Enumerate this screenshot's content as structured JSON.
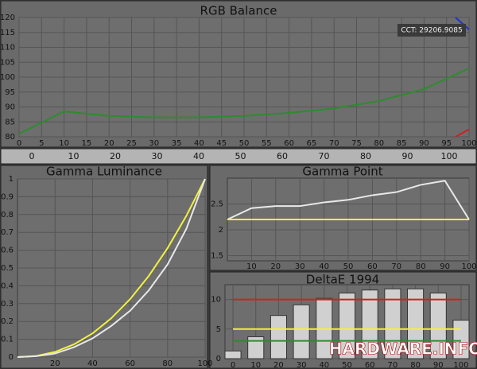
{
  "chart_data": [
    {
      "type": "line",
      "title": "RGB Balance",
      "annotation": "CCT: 29206.9085",
      "xlim": [
        0,
        100
      ],
      "xticks": [
        0,
        5,
        10,
        15,
        20,
        25,
        30,
        35,
        40,
        45,
        50,
        55,
        60,
        65,
        70,
        75,
        80,
        85,
        90,
        95,
        100
      ],
      "ylim": [
        80,
        120
      ],
      "yticks": [
        80,
        85,
        90,
        95,
        100,
        105,
        110,
        115,
        120
      ],
      "grid": true,
      "series": [
        {
          "color": "#2e8b2e",
          "x": [
            0,
            10,
            20,
            30,
            40,
            50,
            60,
            70,
            80,
            90,
            100
          ],
          "values": [
            81,
            88.5,
            87,
            86.5,
            86.5,
            87,
            88,
            89.5,
            92,
            96,
            103
          ]
        },
        {
          "color": "#d02020",
          "x": [
            97,
            100
          ],
          "values": [
            80,
            82.5
          ]
        },
        {
          "color": "#2030d0",
          "x": [
            97,
            100
          ],
          "values": [
            120,
            116
          ]
        }
      ]
    },
    {
      "type": "line",
      "title": "Gamma Luminance",
      "xlim": [
        0,
        100
      ],
      "xticks": [
        20,
        40,
        60,
        80,
        100
      ],
      "ylim": [
        0,
        1
      ],
      "yticks": [
        0,
        0.1,
        0.2,
        0.3,
        0.4,
        0.5,
        0.6,
        0.7,
        0.8,
        0.9,
        1
      ],
      "grid": true,
      "series": [
        {
          "color": "#f0f040",
          "x": [
            0,
            10,
            20,
            30,
            40,
            50,
            60,
            70,
            80,
            90,
            100
          ],
          "values": [
            0,
            0.006,
            0.029,
            0.071,
            0.133,
            0.218,
            0.325,
            0.456,
            0.612,
            0.793,
            1
          ]
        },
        {
          "color": "#e8e8e8",
          "x": [
            0,
            10,
            20,
            30,
            40,
            50,
            60,
            70,
            80,
            90,
            100
          ],
          "values": [
            0,
            0.005,
            0.02,
            0.055,
            0.105,
            0.175,
            0.26,
            0.375,
            0.52,
            0.72,
            1
          ]
        }
      ]
    },
    {
      "type": "line",
      "title": "Gamma Point",
      "xlim": [
        0,
        100
      ],
      "xticks": [
        10,
        20,
        30,
        40,
        50,
        60,
        70,
        80,
        90,
        100
      ],
      "ylim": [
        1.4,
        3.0
      ],
      "yticks": [
        1.5,
        2,
        2.5
      ],
      "grid": true,
      "series": [
        {
          "color": "#e8e8e8",
          "x": [
            0,
            10,
            20,
            30,
            40,
            50,
            60,
            70,
            80,
            90,
            100
          ],
          "values": [
            2.2,
            2.42,
            2.46,
            2.46,
            2.53,
            2.58,
            2.67,
            2.73,
            2.87,
            2.95,
            2.2
          ]
        },
        {
          "color": "#f0f040",
          "x": [
            0,
            100
          ],
          "values": [
            2.2,
            2.2
          ]
        }
      ]
    },
    {
      "type": "bar",
      "title": "DeltaE 1994",
      "xlim": [
        -3.5,
        103.5
      ],
      "xticks": [
        0,
        10,
        20,
        30,
        40,
        50,
        60,
        70,
        80,
        90,
        100
      ],
      "ylim": [
        0,
        12.5
      ],
      "yticks": [
        0,
        5,
        10
      ],
      "grid": true,
      "bar_color": "#d0d0d0",
      "values": [
        1.3,
        3.7,
        7.3,
        9.1,
        10.2,
        11.1,
        11.6,
        11.8,
        11.8,
        11.1,
        6.5
      ],
      "reference_lines": [
        {
          "value": 10,
          "color": "#d02020"
        },
        {
          "value": 5,
          "color": "#f0f040"
        },
        {
          "value": 3,
          "color": "#2e8b2e"
        }
      ]
    }
  ],
  "slider": {
    "ticks": [
      0,
      10,
      20,
      30,
      40,
      50,
      60,
      70,
      80,
      90,
      100
    ]
  },
  "watermark": "HARDWARE.INFO"
}
